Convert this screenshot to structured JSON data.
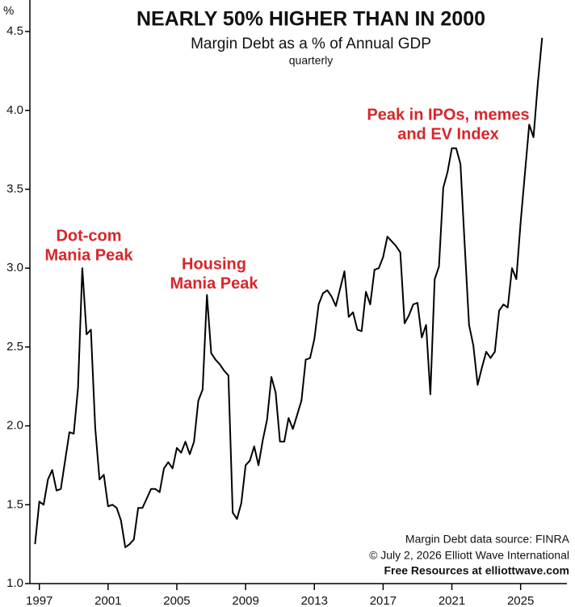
{
  "chart_data": {
    "type": "line",
    "title": "NEARLY 50% HIGHER THAN IN 2000",
    "subtitle": "Margin Debt as a % of Annual GDP",
    "frequency_note": "quarterly",
    "y_axis_label": "%",
    "annotations": [
      [
        "Dot-com",
        "Mania Peak"
      ],
      [
        "Housing",
        "Mania Peak"
      ],
      [
        "Peak in IPOs, memes",
        "and EV Index"
      ]
    ],
    "source": [
      "Margin Debt data source: FINRA",
      "© July 2, 2026  Elliott Wave International",
      "Free Resources at elliottwave.com"
    ],
    "color": "#000000",
    "x": [
      1996.75,
      1997,
      1997.25,
      1997.5,
      1997.75,
      1998,
      1998.25,
      1998.5,
      1998.75,
      1999,
      1999.25,
      1999.5,
      1999.75,
      2000,
      2000.25,
      2000.5,
      2000.75,
      2001,
      2001.25,
      2001.5,
      2001.75,
      2002,
      2002.25,
      2002.5,
      2002.75,
      2003,
      2003.25,
      2003.5,
      2003.75,
      2004,
      2004.25,
      2004.5,
      2004.75,
      2005,
      2005.25,
      2005.5,
      2005.75,
      2006,
      2006.25,
      2006.5,
      2006.75,
      2007,
      2007.25,
      2007.5,
      2007.75,
      2008,
      2008.25,
      2008.5,
      2008.75,
      2009,
      2009.25,
      2009.5,
      2009.75,
      2010,
      2010.25,
      2010.5,
      2010.75,
      2011,
      2011.25,
      2011.5,
      2011.75,
      2012,
      2012.25,
      2012.5,
      2012.75,
      2013,
      2013.25,
      2013.5,
      2013.75,
      2014,
      2014.25,
      2014.5,
      2014.75,
      2015,
      2015.25,
      2015.5,
      2015.75,
      2016,
      2016.25,
      2016.5,
      2016.75,
      2017,
      2017.25,
      2017.5,
      2017.75,
      2018,
      2018.25,
      2018.5,
      2018.75,
      2019,
      2019.25,
      2019.5,
      2019.75,
      2020,
      2020.25,
      2020.5,
      2020.75,
      2021,
      2021.25,
      2021.5,
      2021.75,
      2022,
      2022.25,
      2022.5,
      2022.75,
      2023,
      2023.25,
      2023.5,
      2023.75,
      2024,
      2024.25,
      2024.5,
      2024.75,
      2025,
      2025.25,
      2025.5,
      2025.75,
      2026,
      2026.25
    ],
    "values": [
      1.25,
      1.52,
      1.5,
      1.66,
      1.72,
      1.59,
      1.6,
      1.78,
      1.96,
      1.95,
      2.24,
      3.0,
      2.58,
      2.61,
      1.99,
      1.66,
      1.69,
      1.49,
      1.5,
      1.48,
      1.4,
      1.23,
      1.25,
      1.28,
      1.48,
      1.48,
      1.54,
      1.6,
      1.6,
      1.58,
      1.73,
      1.77,
      1.73,
      1.86,
      1.83,
      1.9,
      1.82,
      1.9,
      2.16,
      2.23,
      2.83,
      2.46,
      2.42,
      2.39,
      2.35,
      2.32,
      1.45,
      1.41,
      1.51,
      1.75,
      1.78,
      1.87,
      1.75,
      1.91,
      2.04,
      2.31,
      2.21,
      1.9,
      1.9,
      2.05,
      1.98,
      2.07,
      2.16,
      2.42,
      2.43,
      2.55,
      2.77,
      2.84,
      2.86,
      2.82,
      2.76,
      2.87,
      2.98,
      2.69,
      2.72,
      2.61,
      2.6,
      2.85,
      2.77,
      2.99,
      3.0,
      3.07,
      3.2,
      3.17,
      3.14,
      3.1,
      2.65,
      2.7,
      2.77,
      2.78,
      2.56,
      2.64,
      2.2,
      2.93,
      3.01,
      3.51,
      3.61,
      3.76,
      3.76,
      3.66,
      3.14,
      2.64,
      2.51,
      2.26,
      2.37,
      2.47,
      2.43,
      2.47,
      2.73,
      2.77,
      2.75,
      3.0,
      2.93,
      3.29,
      3.6,
      3.91,
      3.83,
      4.17,
      4.46
    ],
    "xlim": [
      1996.45,
      2027.6
    ],
    "xticks": [
      1997,
      2001,
      2005,
      2009,
      2013,
      2017,
      2021,
      2025
    ],
    "ylim": [
      1.0,
      4.7
    ],
    "yticks": [
      {
        "value": 1,
        "label": "1.0"
      },
      1.5,
      {
        "value": 2,
        "label": "2.0"
      },
      2.5,
      {
        "value": 3,
        "label": "3.0"
      },
      3.5,
      {
        "value": 4,
        "label": "4.0"
      },
      4.5
    ],
    "grid": false
  }
}
